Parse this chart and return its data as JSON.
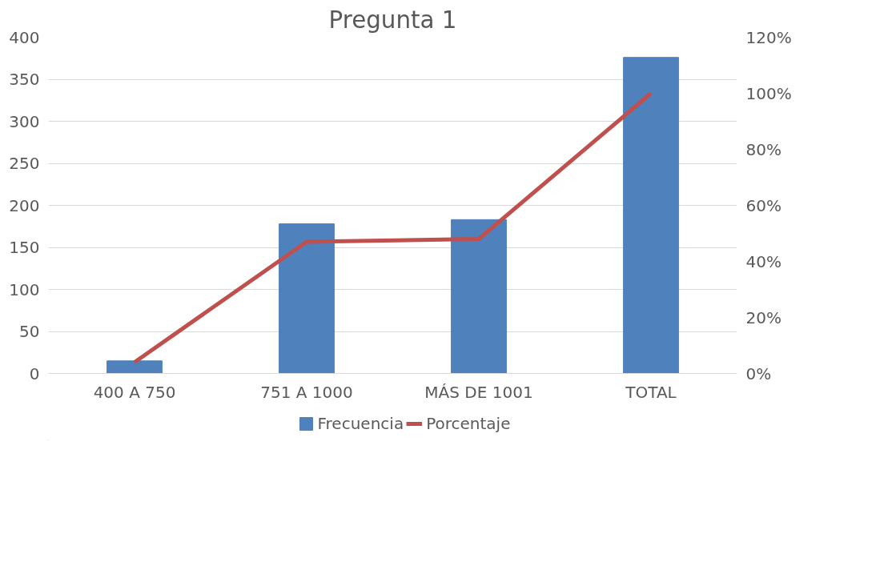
{
  "chart_data": {
    "type": "bar",
    "title": "Pregunta 1",
    "categories": [
      "400 A 750",
      "751 A 1000",
      "MÁS DE 1001",
      "TOTAL"
    ],
    "series": [
      {
        "name": "Frecuencia",
        "color": "#4f81bd",
        "values": [
          15,
          178,
          183,
          376
        ]
      },
      {
        "name": "Porcentaje",
        "type": "line",
        "axis": "y2",
        "color": "#c0504d",
        "values": [
          4,
          47,
          48,
          100
        ]
      }
    ],
    "ylim": [
      0,
      400
    ],
    "yticks": [
      0,
      50,
      100,
      150,
      200,
      250,
      300,
      350,
      400
    ],
    "y2lim": [
      0,
      120
    ],
    "y2ticks": [
      {
        "value": 0,
        "label": "0%"
      },
      {
        "value": 20,
        "label": "20%"
      },
      {
        "value": 40,
        "label": "40%"
      },
      {
        "value": 60,
        "label": "60%"
      },
      {
        "value": 80,
        "label": "80%"
      },
      {
        "value": 100,
        "label": "100%"
      },
      {
        "value": 120,
        "label": "120%"
      }
    ],
    "grid": "y",
    "legend": "bottom",
    "marker": "none",
    "line_style": "solid"
  }
}
